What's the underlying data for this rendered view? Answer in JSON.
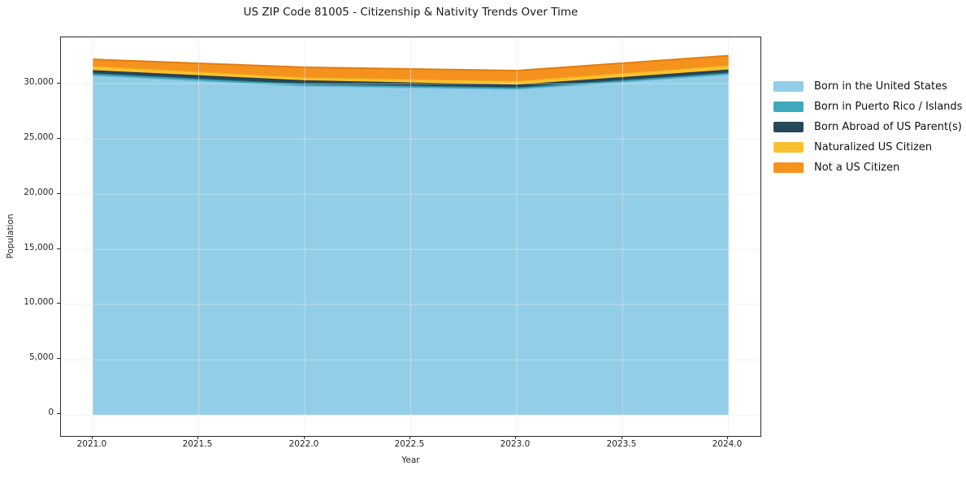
{
  "chart_data": {
    "type": "area",
    "stacked": true,
    "title": "US ZIP Code 81005 - Citizenship & Nativity Trends Over Time",
    "xlabel": "Year",
    "ylabel": "Population",
    "x": [
      2021,
      2022,
      2023,
      2024
    ],
    "series": [
      {
        "name": "Born in the United States",
        "color": "#92cee8",
        "edge_color": "#79bedd",
        "values": [
          30750,
          29800,
          29500,
          30850
        ]
      },
      {
        "name": "Born in Puerto Rico / Islands",
        "color": "#3fa8bd",
        "edge_color": "#2f8596",
        "values": [
          190,
          190,
          170,
          160
        ]
      },
      {
        "name": "Born Abroad of US Parent(s)",
        "color": "#25475b",
        "edge_color": "#1c3848",
        "values": [
          290,
          320,
          260,
          270
        ]
      },
      {
        "name": "Naturalized US Citizen",
        "color": "#fbc02d",
        "edge_color": "#e8a818",
        "values": [
          390,
          290,
          340,
          410
        ]
      },
      {
        "name": "Not a US Citizen",
        "color": "#f5921e",
        "edge_color": "#e07d0f",
        "values": [
          580,
          890,
          920,
          850
        ]
      }
    ],
    "totals": [
      32200,
      31490,
      31190,
      32540
    ],
    "xlim": [
      2020.85,
      2024.15
    ],
    "ylim": [
      -1900,
      34200
    ],
    "xticks": [
      2021.0,
      2021.5,
      2022.0,
      2022.5,
      2023.0,
      2023.5,
      2024.0
    ],
    "yticks": [
      0,
      5000,
      10000,
      15000,
      20000,
      25000,
      30000
    ],
    "grid": true,
    "gridline_color": "#e8e8e8",
    "spine_color": "#2a2a2a",
    "legend_position": "right"
  }
}
